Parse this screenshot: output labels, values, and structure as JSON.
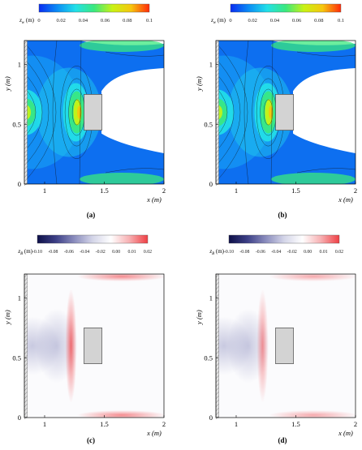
{
  "figure": {
    "panels": [
      {
        "label": "(a)",
        "colorbar": {
          "symbol": "z",
          "subscript": "w",
          "unit": "(m)",
          "ticks": [
            "0",
            "0.02",
            "0.04",
            "0.06",
            "0.08",
            "0.1"
          ],
          "colors": [
            "#0a2cf0",
            "#0b8df5",
            "#22e0e8",
            "#3ae87e",
            "#c9f214",
            "#f6c70e",
            "#ff2a0a"
          ]
        },
        "ylabel": "y (m)",
        "xlabel": "x (m)",
        "xticks": [
          "1",
          "1.5",
          "2"
        ],
        "yticks": [
          "0",
          "0.5",
          "1"
        ]
      },
      {
        "label": "(b)",
        "colorbar": {
          "symbol": "z",
          "subscript": "w",
          "unit": "(m)",
          "ticks": [
            "0",
            "0.02",
            "0.04",
            "0.06",
            "0.08",
            "0.1"
          ],
          "colors": [
            "#0a2cf0",
            "#0b8df5",
            "#22e0e8",
            "#3ae87e",
            "#c9f214",
            "#f6c70e",
            "#ff2a0a"
          ]
        },
        "ylabel": "y (m)",
        "xlabel": "x (m)",
        "xticks": [
          "1",
          "1.5",
          "2"
        ],
        "yticks": [
          "0",
          "0.5",
          "1"
        ]
      },
      {
        "label": "(c)",
        "colorbar": {
          "symbol": "z",
          "subscript": "B",
          "unit": "(m)",
          "ticks": [
            "-0.10",
            "-0.08",
            "-0.06",
            "-0.04",
            "-0.02",
            "0.00",
            "0.01",
            "0.02"
          ],
          "colors": [
            "#0e1048",
            "#3c3f86",
            "#8a8cbd",
            "#d4d5e8",
            "#ffffff",
            "#f7b0b2",
            "#ef3f44"
          ]
        },
        "ylabel": "y (m)",
        "xlabel": "x (m)",
        "xticks": [
          "1",
          "1.5",
          "2"
        ],
        "yticks": [
          "0",
          "0.5",
          "1"
        ]
      },
      {
        "label": "(d)",
        "colorbar": {
          "symbol": "z",
          "subscript": "B",
          "unit": "(m)",
          "ticks": [
            "-0.10",
            "-0.08",
            "-0.06",
            "-0.04",
            "-0.02",
            "0.00",
            "0.01",
            "0.02"
          ],
          "colors": [
            "#0e1048",
            "#3c3f86",
            "#8a8cbd",
            "#d4d5e8",
            "#ffffff",
            "#f7b0b2",
            "#ef3f44"
          ]
        },
        "ylabel": "y (m)",
        "xlabel": "x (m)",
        "xticks": [
          "1",
          "1.5",
          "2"
        ],
        "yticks": [
          "0",
          "0.5",
          "1"
        ]
      }
    ]
  },
  "chart_data": [
    {
      "type": "heatmap",
      "panel": "(a)",
      "xlabel": "x (m)",
      "ylabel": "y (m)",
      "xlim": [
        0.83,
        2.0
      ],
      "ylim": [
        0,
        1.2
      ],
      "colorbar_label": "z_w (m)",
      "colorbar_range": [
        0,
        0.1
      ],
      "obstacle": {
        "x": [
          1.33,
          1.48
        ],
        "y": [
          0.45,
          0.75
        ]
      },
      "xticks": [
        1,
        1.5,
        2
      ],
      "yticks": [
        0,
        0.5,
        1
      ]
    },
    {
      "type": "heatmap",
      "panel": "(b)",
      "xlabel": "x (m)",
      "ylabel": "y (m)",
      "xlim": [
        0.83,
        2.0
      ],
      "ylim": [
        0,
        1.2
      ],
      "colorbar_label": "z_w (m)",
      "colorbar_range": [
        0,
        0.1
      ],
      "obstacle": {
        "x": [
          1.33,
          1.48
        ],
        "y": [
          0.45,
          0.75
        ]
      },
      "xticks": [
        1,
        1.5,
        2
      ],
      "yticks": [
        0,
        0.5,
        1
      ]
    },
    {
      "type": "heatmap",
      "panel": "(c)",
      "xlabel": "x (m)",
      "ylabel": "y (m)",
      "xlim": [
        0.83,
        2.0
      ],
      "ylim": [
        0,
        1.2
      ],
      "colorbar_label": "z_B (m)",
      "colorbar_range": [
        -0.1,
        0.02
      ],
      "obstacle": {
        "x": [
          1.33,
          1.48
        ],
        "y": [
          0.45,
          0.75
        ]
      },
      "xticks": [
        1,
        1.5,
        2
      ],
      "yticks": [
        0,
        0.5,
        1
      ]
    },
    {
      "type": "heatmap",
      "panel": "(d)",
      "xlabel": "x (m)",
      "ylabel": "y (m)",
      "xlim": [
        0.83,
        2.0
      ],
      "ylim": [
        0,
        1.2
      ],
      "colorbar_label": "z_B (m)",
      "colorbar_range": [
        -0.1,
        0.02
      ],
      "obstacle": {
        "x": [
          1.33,
          1.48
        ],
        "y": [
          0.45,
          0.75
        ]
      },
      "xticks": [
        1,
        1.5,
        2
      ],
      "yticks": [
        0,
        0.5,
        1
      ]
    }
  ]
}
